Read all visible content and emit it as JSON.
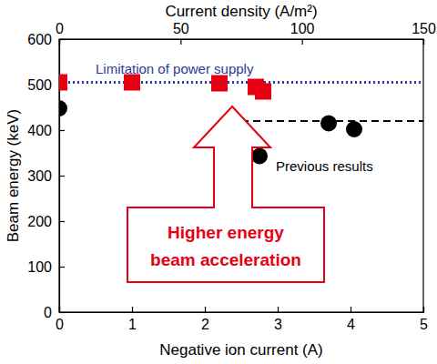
{
  "chart_data": {
    "type": "scatter",
    "xlabel": "Negative ion current (A)",
    "ylabel": "Beam energy (keV)",
    "x2label": "Current density (A/m²)",
    "xlim": [
      0,
      5
    ],
    "xticks": [
      0,
      1,
      2,
      3,
      4,
      5
    ],
    "x2lim": [
      0,
      150
    ],
    "x2ticks": [
      0,
      50,
      100,
      150
    ],
    "ylim": [
      0,
      600
    ],
    "yticks": [
      0,
      100,
      200,
      300,
      400,
      500,
      600
    ],
    "grid": false,
    "series": [
      {
        "color": "#e60012",
        "marker": "square",
        "x": [
          0,
          1,
          2.2,
          2.7,
          2.8
        ],
        "values": [
          505,
          505,
          503,
          495,
          485
        ]
      },
      {
        "name": "Previous results",
        "color": "#000000",
        "marker": "circle",
        "x": [
          0,
          2.75,
          3.7,
          4.05
        ],
        "values": [
          448,
          343,
          415,
          402
        ]
      }
    ],
    "lines": [
      {
        "label": "Limitation of power supply",
        "y": 505,
        "x": [
          0,
          5
        ],
        "color": "#2b3a9a",
        "line_style": "dotted"
      },
      {
        "y": 420,
        "x": [
          2.5,
          5
        ],
        "color": "#000000",
        "line_style": "dashed"
      }
    ],
    "annotations": [
      {
        "text": [
          "Higher energy",
          "beam acceleration"
        ],
        "color": "#e60012"
      }
    ]
  }
}
